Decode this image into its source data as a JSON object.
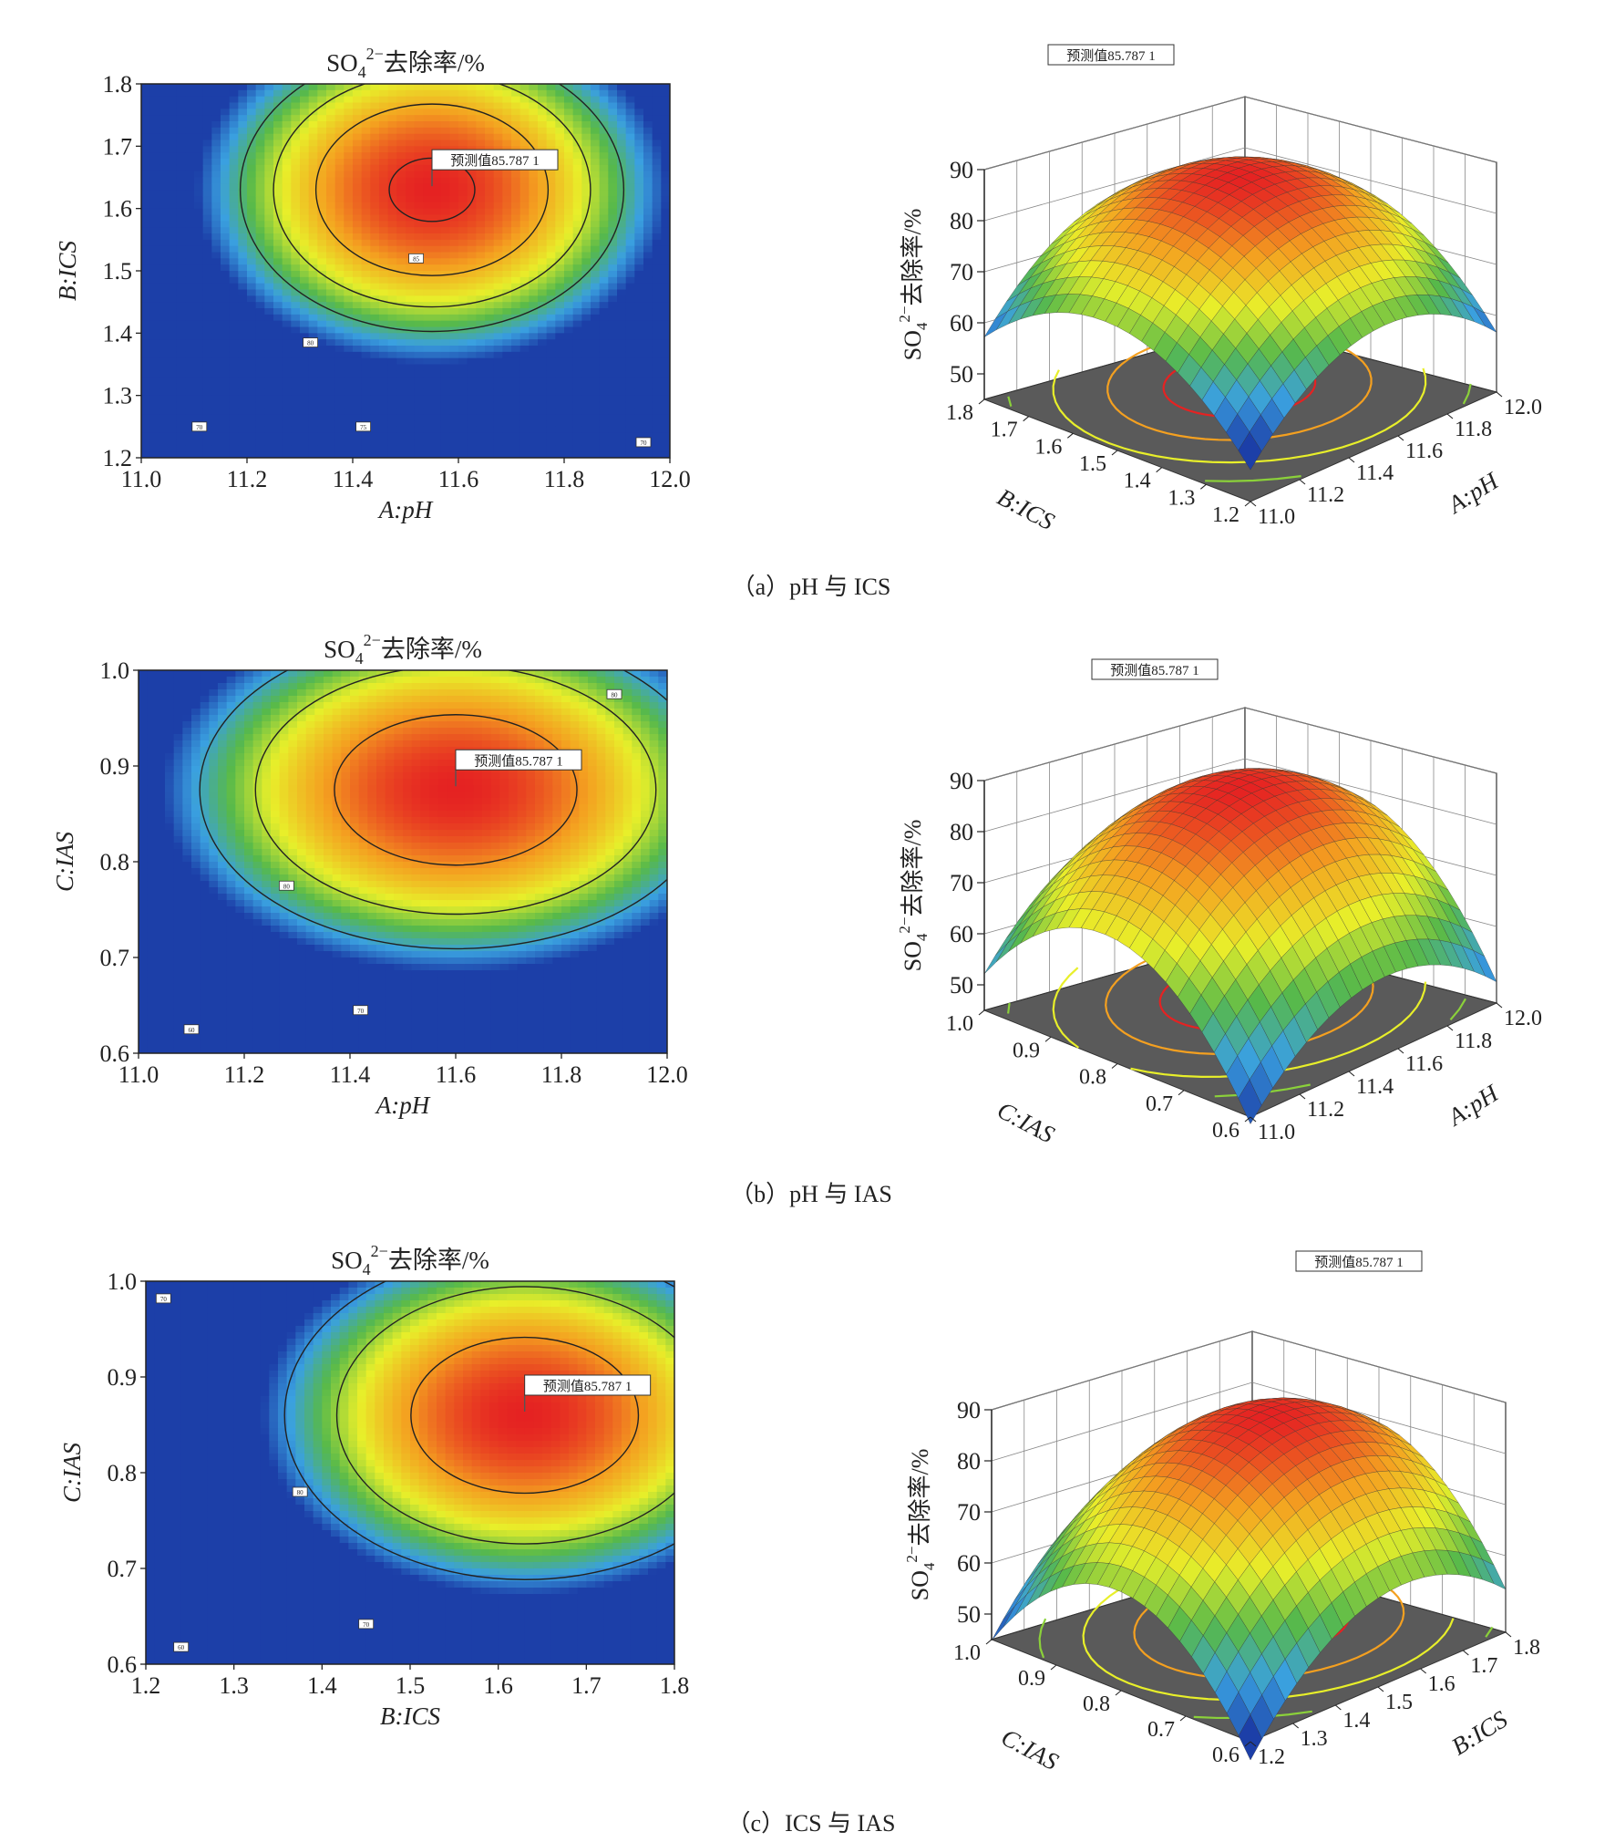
{
  "colors": {
    "scale": [
      "#1c3fa8",
      "#3aa0e0",
      "#57b94a",
      "#e8ef2a",
      "#f4a020",
      "#e52222"
    ],
    "floor": "#5a5a5a",
    "contour": "#222222"
  },
  "chart_data": [
    {
      "id": "a",
      "type": "heatmap",
      "title_main": "SO",
      "title_sub": "4",
      "title_sup": "2−",
      "title_tail": "去除率/%",
      "xlabel": "A:pH",
      "ylabel": "B:ICS",
      "xlim": [
        11.0,
        12.0
      ],
      "ylim": [
        1.2,
        1.8
      ],
      "xticks": [
        "11.0",
        "11.2",
        "11.4",
        "11.6",
        "11.8",
        "12.0"
      ],
      "yticks": [
        "1.2",
        "1.3",
        "1.4",
        "1.5",
        "1.6",
        "1.7",
        "1.8"
      ],
      "optimum": {
        "x": 11.55,
        "y": 1.63,
        "z": 85.7871
      },
      "prediction_label": "预测值85.787 1",
      "contour_levels": [
        85,
        80,
        75,
        70
      ],
      "contour_labels": [
        {
          "text": "85",
          "x": 11.52,
          "y": 1.52
        },
        {
          "text": "80",
          "x": 11.32,
          "y": 1.385
        },
        {
          "text": "75",
          "x": 11.42,
          "y": 1.25
        },
        {
          "text": "70",
          "x": 11.11,
          "y": 1.25
        },
        {
          "text": "70",
          "x": 11.95,
          "y": 1.225
        }
      ]
    },
    {
      "id": "a3d",
      "type": "surface",
      "zlabel": "SO4 2− 去除率/%",
      "zticks": [
        "50",
        "60",
        "70",
        "80",
        "90"
      ],
      "zlim": [
        45,
        90
      ],
      "left_label": "B:ICS",
      "left_ticks": [
        "1.8",
        "1.7",
        "1.6",
        "1.5",
        "1.4",
        "1.3",
        "1.2"
      ],
      "right_label": "A:pH",
      "right_ticks": [
        "11.0",
        "11.2",
        "11.4",
        "11.6",
        "11.8",
        "12.0"
      ],
      "prediction_label": "预测值85.787 1"
    },
    {
      "id": "b",
      "type": "heatmap",
      "title_main": "SO",
      "title_sub": "4",
      "title_sup": "2−",
      "title_tail": "去除率/%",
      "xlabel": "A:pH",
      "ylabel": "C:IAS",
      "xlim": [
        11.0,
        12.0
      ],
      "ylim": [
        0.6,
        1.0
      ],
      "xticks": [
        "11.0",
        "11.2",
        "11.4",
        "11.6",
        "11.8",
        "12.0"
      ],
      "yticks": [
        "0.6",
        "0.7",
        "0.8",
        "0.9",
        "1.0"
      ],
      "optimum": {
        "x": 11.6,
        "y": 0.875,
        "z": 85.7871
      },
      "prediction_label": "预测值85.787 1",
      "contour_levels": [
        80,
        70,
        60
      ],
      "contour_labels": [
        {
          "text": "80",
          "x": 11.28,
          "y": 0.775
        },
        {
          "text": "80",
          "x": 11.9,
          "y": 0.975
        },
        {
          "text": "70",
          "x": 11.42,
          "y": 0.645
        },
        {
          "text": "60",
          "x": 11.1,
          "y": 0.625
        }
      ]
    },
    {
      "id": "b3d",
      "type": "surface",
      "zlabel": "SO4 2− 去除率/%",
      "zticks": [
        "50",
        "60",
        "70",
        "80",
        "90"
      ],
      "zlim": [
        45,
        90
      ],
      "left_label": "C:IAS",
      "left_ticks": [
        "1.0",
        "0.9",
        "0.8",
        "0.7",
        "0.6"
      ],
      "right_label": "A:pH",
      "right_ticks": [
        "11.0",
        "11.2",
        "11.4",
        "11.6",
        "11.8",
        "12.0"
      ],
      "prediction_label": "预测值85.787 1"
    },
    {
      "id": "c",
      "type": "heatmap",
      "title_main": "SO",
      "title_sub": "4",
      "title_sup": "2−",
      "title_tail": "去除率/%",
      "xlabel": "B:ICS",
      "ylabel": "C:IAS",
      "xlim": [
        1.2,
        1.8
      ],
      "ylim": [
        0.6,
        1.0
      ],
      "xticks": [
        "1.2",
        "1.3",
        "1.4",
        "1.5",
        "1.6",
        "1.7",
        "1.8"
      ],
      "yticks": [
        "0.6",
        "0.7",
        "0.8",
        "0.9",
        "1.0"
      ],
      "optimum": {
        "x": 1.63,
        "y": 0.86,
        "z": 85.7871
      },
      "prediction_label": "预测值85.787 1",
      "contour_levels": [
        80,
        70,
        60
      ],
      "contour_labels": [
        {
          "text": "80",
          "x": 1.375,
          "y": 0.78
        },
        {
          "text": "70",
          "x": 1.45,
          "y": 0.642
        },
        {
          "text": "70",
          "x": 1.22,
          "y": 0.982
        },
        {
          "text": "60",
          "x": 1.24,
          "y": 0.618
        }
      ]
    },
    {
      "id": "c3d",
      "type": "surface",
      "zlabel": "SO4 2− 去除率/%",
      "zticks": [
        "50",
        "60",
        "70",
        "80",
        "90"
      ],
      "zlim": [
        45,
        90
      ],
      "left_label": "C:IAS",
      "left_ticks": [
        "1.0",
        "0.9",
        "0.8",
        "0.7",
        "0.6"
      ],
      "right_label": "B:ICS",
      "right_ticks": [
        "1.2",
        "1.3",
        "1.4",
        "1.5",
        "1.6",
        "1.7",
        "1.8"
      ],
      "prediction_label": "预测值85.787 1"
    }
  ],
  "captions": {
    "a": "（a）pH 与 ICS",
    "b": "（b）pH 与 IAS",
    "c": "（c）ICS 与 IAS"
  }
}
